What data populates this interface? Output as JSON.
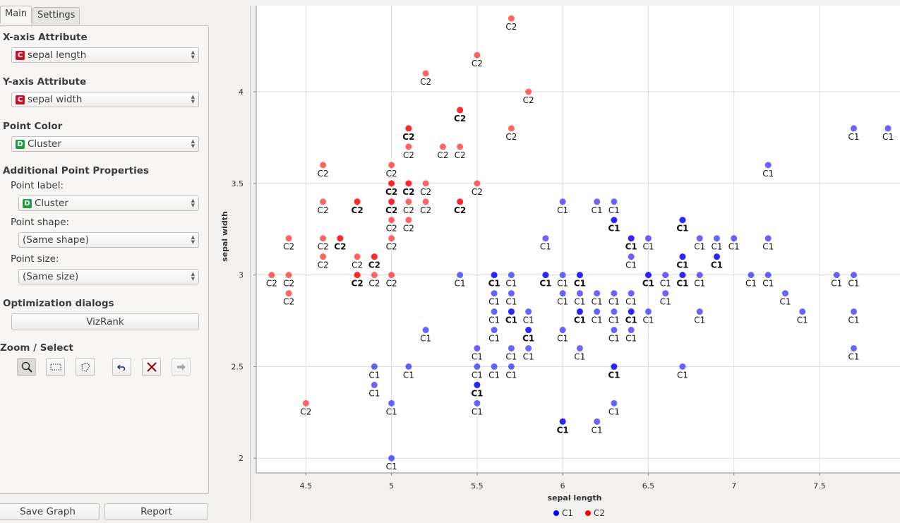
{
  "tabs": [
    {
      "label": "Main"
    },
    {
      "label": "Settings"
    }
  ],
  "controls": {
    "x_axis": {
      "heading": "X-axis Attribute",
      "value": "sepal length",
      "badge": "C"
    },
    "y_axis": {
      "heading": "Y-axis Attribute",
      "value": "sepal width",
      "badge": "C"
    },
    "point_color": {
      "heading": "Point Color",
      "value": "Cluster",
      "badge": "D"
    },
    "additional": {
      "heading": "Additional Point Properties",
      "label_label": "Point label:",
      "label_value": "Cluster",
      "label_badge": "D",
      "shape_label": "Point shape:",
      "shape_value": "(Same shape)",
      "size_label": "Point size:",
      "size_value": "(Same size)"
    },
    "optimization": {
      "heading": "Optimization dialogs",
      "vizrank": "VizRank"
    },
    "zoom_select": {
      "heading": "Zoom / Select"
    }
  },
  "footer": {
    "save_graph": "Save Graph",
    "report": "Report"
  },
  "colors": {
    "C1": "#0000ff",
    "C2": "#ff0000",
    "continuous_badge": "#c8102e",
    "discrete_badge": "#1e9e3e"
  },
  "chart_data": {
    "type": "scatter",
    "xlabel": "sepal length",
    "ylabel": "sepal width",
    "xlim": [
      4.21,
      7.97
    ],
    "ylim": [
      1.92,
      4.47
    ],
    "xticks": [
      4.5,
      5,
      5.5,
      6,
      6.5,
      7,
      7.5
    ],
    "yticks": [
      2,
      2.5,
      3,
      3.5,
      4
    ],
    "grid": true,
    "legend": {
      "placement": "bottom-center",
      "entries": [
        "C1",
        "C2"
      ]
    },
    "points_format": [
      "x",
      "y",
      "cluster",
      "count"
    ],
    "points": [
      [
        4.3,
        3.0,
        "C2",
        1
      ],
      [
        4.4,
        3.0,
        "C2",
        1
      ],
      [
        4.4,
        2.9,
        "C2",
        1
      ],
      [
        4.4,
        3.2,
        "C2",
        1
      ],
      [
        4.5,
        2.3,
        "C2",
        1
      ],
      [
        4.6,
        3.6,
        "C2",
        1
      ],
      [
        4.6,
        3.4,
        "C2",
        1
      ],
      [
        4.6,
        3.2,
        "C2",
        1
      ],
      [
        4.6,
        3.1,
        "C2",
        1
      ],
      [
        4.7,
        3.2,
        "C2",
        2
      ],
      [
        4.8,
        3.4,
        "C2",
        2
      ],
      [
        4.8,
        3.1,
        "C2",
        1
      ],
      [
        4.8,
        3.0,
        "C2",
        2
      ],
      [
        4.9,
        3.1,
        "C2",
        2
      ],
      [
        4.9,
        3.0,
        "C2",
        1
      ],
      [
        5.0,
        3.6,
        "C2",
        1
      ],
      [
        5.0,
        3.5,
        "C2",
        2
      ],
      [
        5.0,
        3.4,
        "C2",
        2
      ],
      [
        5.0,
        3.3,
        "C2",
        1
      ],
      [
        5.0,
        3.2,
        "C2",
        1
      ],
      [
        5.0,
        3.0,
        "C2",
        1
      ],
      [
        5.1,
        3.8,
        "C2",
        2
      ],
      [
        5.1,
        3.7,
        "C2",
        1
      ],
      [
        5.1,
        3.5,
        "C2",
        2
      ],
      [
        5.1,
        3.4,
        "C2",
        1
      ],
      [
        5.1,
        3.3,
        "C2",
        1
      ],
      [
        5.2,
        4.1,
        "C2",
        1
      ],
      [
        5.2,
        3.5,
        "C2",
        1
      ],
      [
        5.2,
        3.4,
        "C2",
        1
      ],
      [
        5.3,
        3.7,
        "C2",
        1
      ],
      [
        5.4,
        3.9,
        "C2",
        2
      ],
      [
        5.4,
        3.7,
        "C2",
        1
      ],
      [
        5.4,
        3.4,
        "C2",
        2
      ],
      [
        5.5,
        4.2,
        "C2",
        1
      ],
      [
        5.5,
        3.5,
        "C2",
        1
      ],
      [
        5.7,
        4.4,
        "C2",
        1
      ],
      [
        5.7,
        3.8,
        "C2",
        1
      ],
      [
        5.8,
        4.0,
        "C2",
        1
      ],
      [
        4.9,
        2.5,
        "C1",
        1
      ],
      [
        4.9,
        2.4,
        "C1",
        1
      ],
      [
        5.0,
        2.3,
        "C1",
        1
      ],
      [
        5.0,
        2.0,
        "C1",
        1
      ],
      [
        5.1,
        2.5,
        "C1",
        1
      ],
      [
        5.2,
        2.7,
        "C1",
        1
      ],
      [
        5.4,
        3.0,
        "C1",
        1
      ],
      [
        5.5,
        2.6,
        "C1",
        1
      ],
      [
        5.5,
        2.5,
        "C1",
        1
      ],
      [
        5.5,
        2.4,
        "C1",
        2
      ],
      [
        5.5,
        2.3,
        "C1",
        1
      ],
      [
        5.6,
        3.0,
        "C1",
        2
      ],
      [
        5.6,
        2.9,
        "C1",
        1
      ],
      [
        5.6,
        2.8,
        "C1",
        1
      ],
      [
        5.6,
        2.7,
        "C1",
        1
      ],
      [
        5.6,
        2.5,
        "C1",
        1
      ],
      [
        5.7,
        3.0,
        "C1",
        1
      ],
      [
        5.7,
        2.9,
        "C1",
        1
      ],
      [
        5.7,
        2.8,
        "C1",
        2
      ],
      [
        5.7,
        2.6,
        "C1",
        1
      ],
      [
        5.7,
        2.5,
        "C1",
        1
      ],
      [
        5.8,
        2.8,
        "C1",
        1
      ],
      [
        5.8,
        2.7,
        "C1",
        2
      ],
      [
        5.8,
        2.6,
        "C1",
        1
      ],
      [
        5.9,
        3.2,
        "C1",
        1
      ],
      [
        5.9,
        3.0,
        "C1",
        2
      ],
      [
        6.0,
        3.4,
        "C1",
        1
      ],
      [
        6.0,
        3.0,
        "C1",
        1
      ],
      [
        6.0,
        2.9,
        "C1",
        1
      ],
      [
        6.0,
        2.7,
        "C1",
        1
      ],
      [
        6.0,
        2.2,
        "C1",
        2
      ],
      [
        6.1,
        3.0,
        "C1",
        2
      ],
      [
        6.1,
        2.9,
        "C1",
        1
      ],
      [
        6.1,
        2.8,
        "C1",
        2
      ],
      [
        6.1,
        2.6,
        "C1",
        1
      ],
      [
        6.2,
        3.4,
        "C1",
        1
      ],
      [
        6.2,
        2.9,
        "C1",
        1
      ],
      [
        6.2,
        2.8,
        "C1",
        1
      ],
      [
        6.2,
        2.2,
        "C1",
        1
      ],
      [
        6.3,
        3.4,
        "C1",
        1
      ],
      [
        6.3,
        3.3,
        "C1",
        2
      ],
      [
        6.3,
        2.9,
        "C1",
        1
      ],
      [
        6.3,
        2.8,
        "C1",
        1
      ],
      [
        6.3,
        2.7,
        "C1",
        1
      ],
      [
        6.3,
        2.5,
        "C1",
        2
      ],
      [
        6.3,
        2.3,
        "C1",
        1
      ],
      [
        6.4,
        3.2,
        "C1",
        2
      ],
      [
        6.4,
        3.1,
        "C1",
        1
      ],
      [
        6.4,
        2.9,
        "C1",
        1
      ],
      [
        6.4,
        2.8,
        "C1",
        2
      ],
      [
        6.4,
        2.7,
        "C1",
        1
      ],
      [
        6.5,
        3.2,
        "C1",
        1
      ],
      [
        6.5,
        3.0,
        "C1",
        2
      ],
      [
        6.5,
        2.8,
        "C1",
        1
      ],
      [
        6.6,
        3.0,
        "C1",
        1
      ],
      [
        6.6,
        2.9,
        "C1",
        1
      ],
      [
        6.7,
        3.3,
        "C1",
        2
      ],
      [
        6.7,
        3.1,
        "C1",
        2
      ],
      [
        6.7,
        3.0,
        "C1",
        2
      ],
      [
        6.7,
        2.5,
        "C1",
        1
      ],
      [
        6.8,
        3.2,
        "C1",
        1
      ],
      [
        6.8,
        3.0,
        "C1",
        1
      ],
      [
        6.8,
        2.8,
        "C1",
        1
      ],
      [
        6.9,
        3.2,
        "C1",
        1
      ],
      [
        6.9,
        3.1,
        "C1",
        2
      ],
      [
        7.0,
        3.2,
        "C1",
        1
      ],
      [
        7.1,
        3.0,
        "C1",
        1
      ],
      [
        7.2,
        3.6,
        "C1",
        1
      ],
      [
        7.2,
        3.2,
        "C1",
        1
      ],
      [
        7.2,
        3.0,
        "C1",
        1
      ],
      [
        7.3,
        2.9,
        "C1",
        1
      ],
      [
        7.4,
        2.8,
        "C1",
        1
      ],
      [
        7.6,
        3.0,
        "C1",
        1
      ],
      [
        7.7,
        3.8,
        "C1",
        1
      ],
      [
        7.7,
        3.0,
        "C1",
        1
      ],
      [
        7.7,
        2.8,
        "C1",
        1
      ],
      [
        7.7,
        2.6,
        "C1",
        1
      ],
      [
        7.9,
        3.8,
        "C1",
        1
      ]
    ]
  }
}
